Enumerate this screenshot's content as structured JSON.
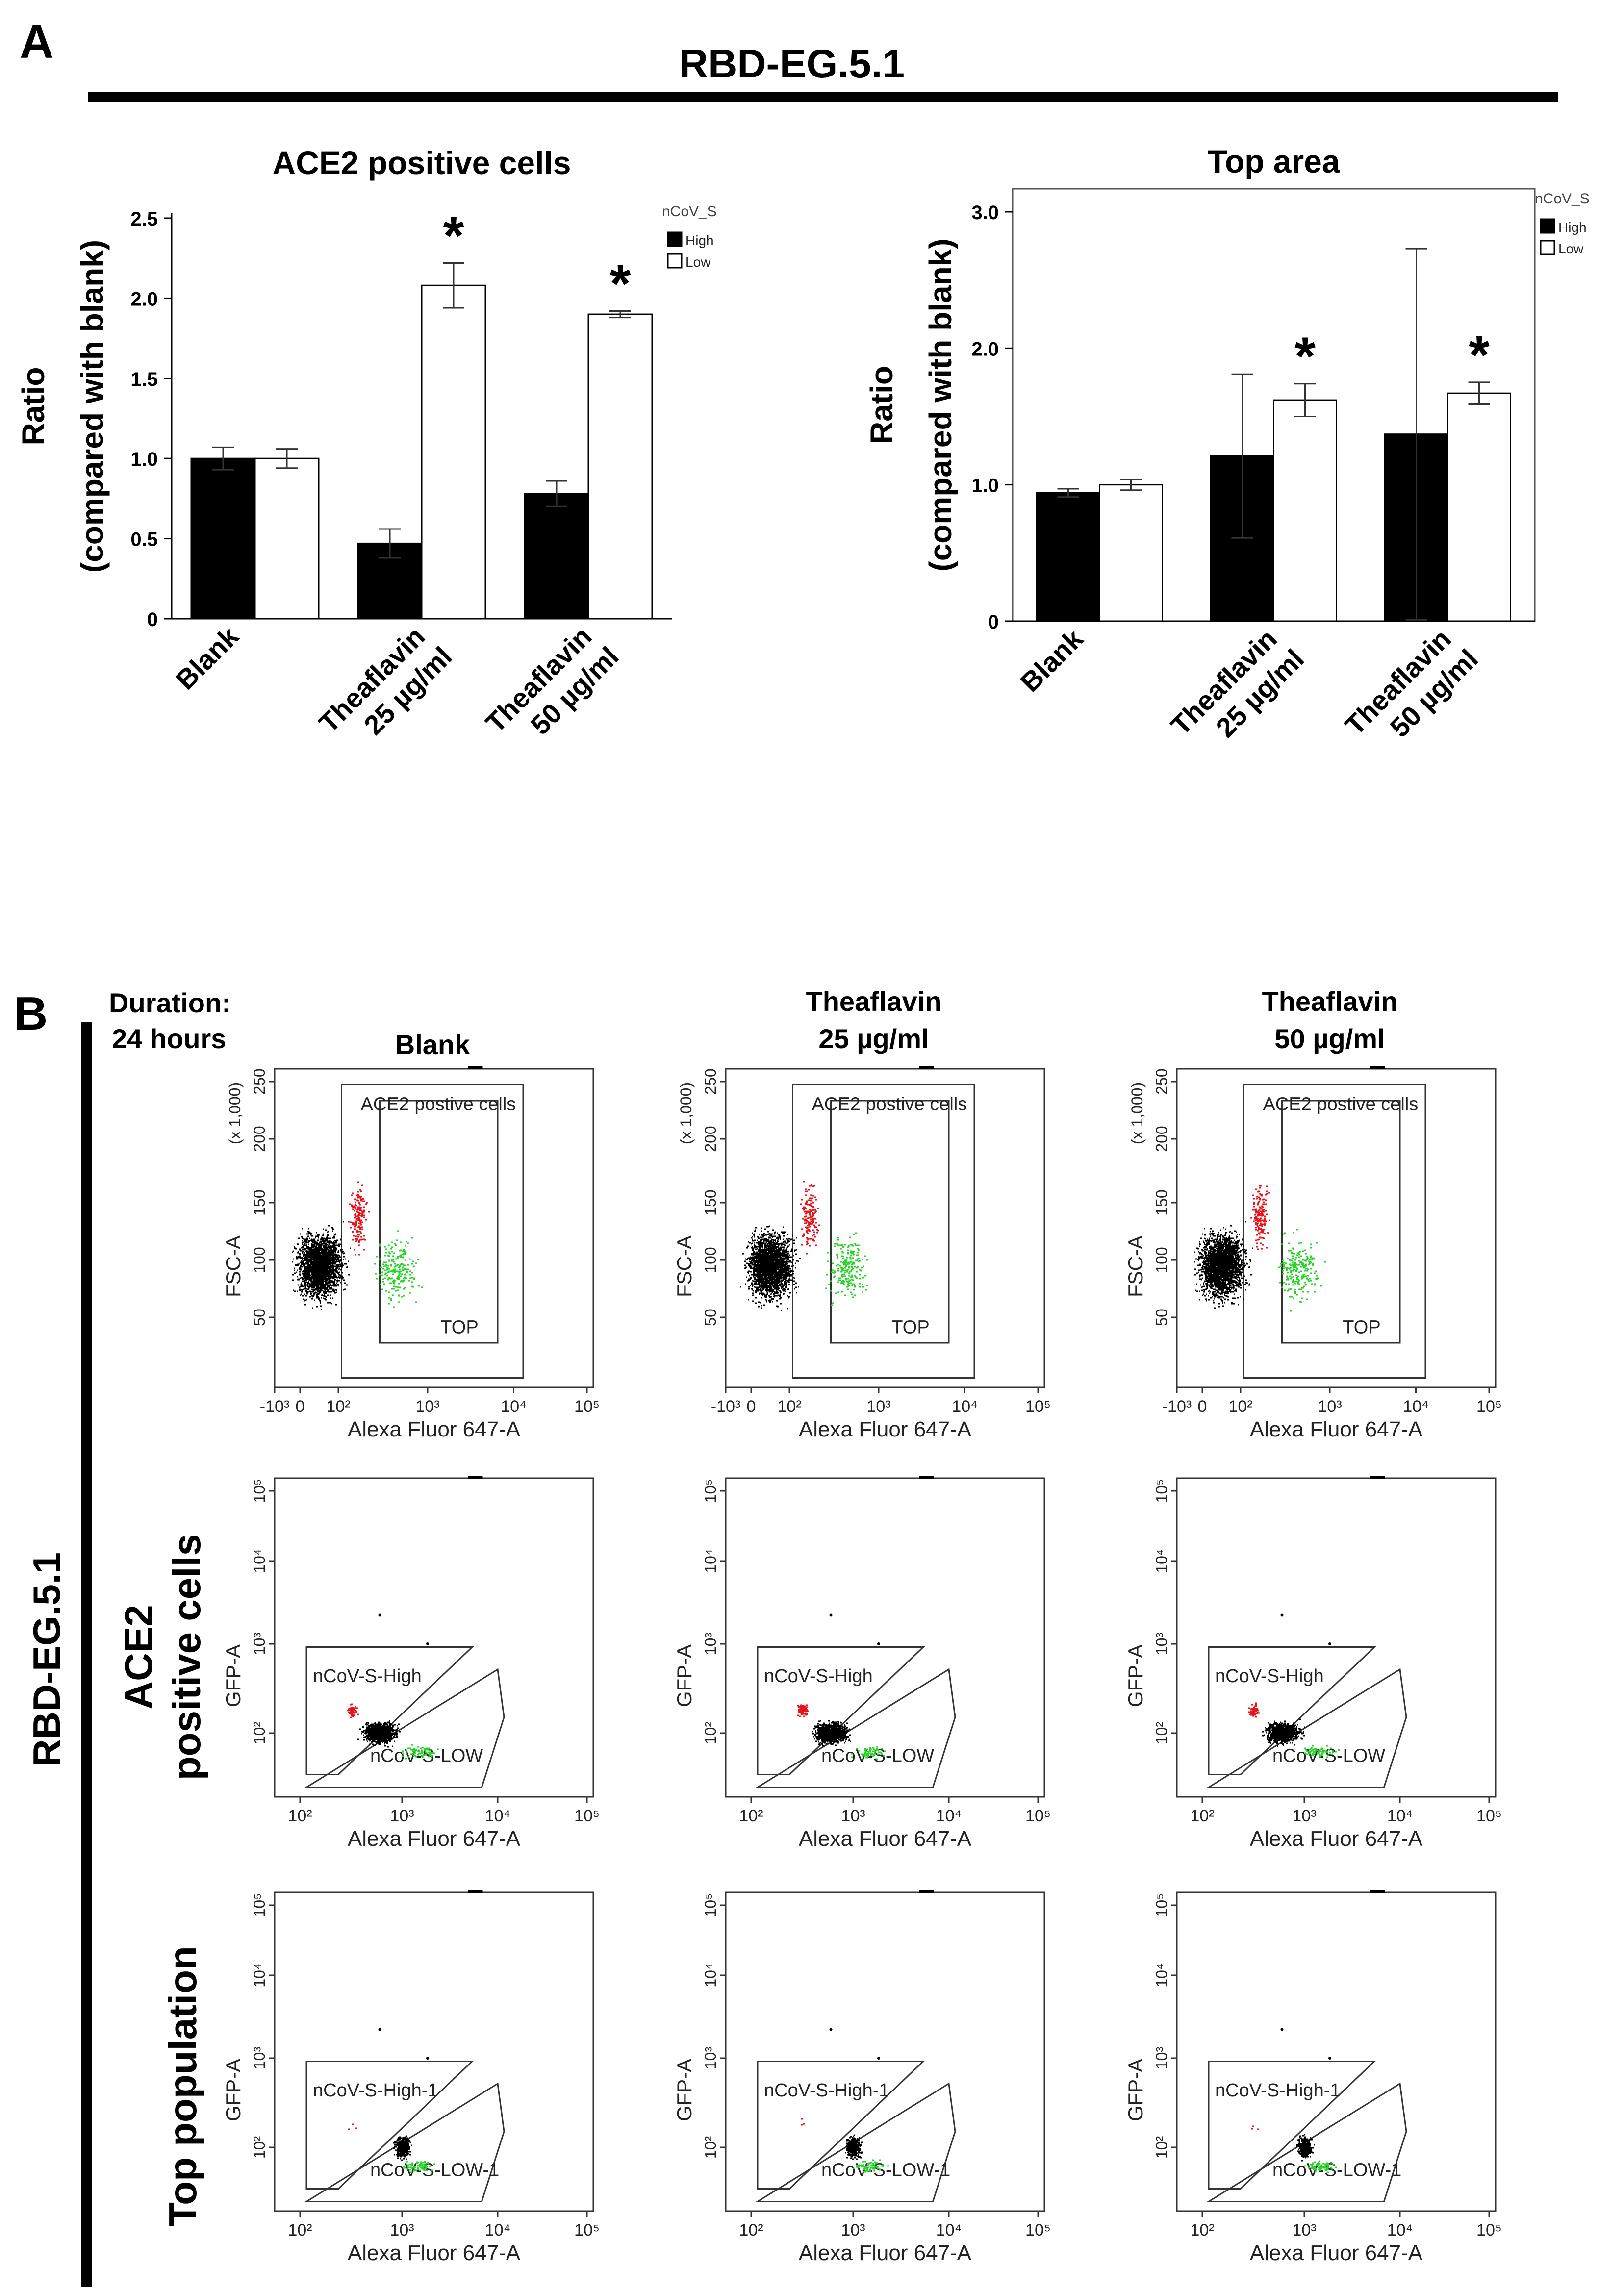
{
  "panel_a": {
    "letter": "A",
    "header": "RBD-EG.5.1"
  },
  "panel_b": {
    "letter": "B",
    "duration_line1": "Duration:",
    "duration_line2": "24 hours",
    "side_label": "RBD-EG.5.1",
    "columns": [
      {
        "line1": "Blank",
        "line2": ""
      },
      {
        "line1": "Theaflavin",
        "line2": "25 µg/ml"
      },
      {
        "line1": "Theaflavin",
        "line2": "50 µg/ml"
      }
    ],
    "row_labels": [
      {
        "line1": "",
        "line2": ""
      },
      {
        "line1": "ACE2",
        "line2": "positive cells"
      },
      {
        "line1": "Top population",
        "line2": ""
      }
    ],
    "flow_rows": [
      {
        "type": "scatter",
        "xlabel": "Alexa Fluor 647-A",
        "ylabel": "FSC-A",
        "ymult": "(x 1,000)",
        "xticks": [
          "-10³",
          "0",
          "10²",
          "10³",
          "10⁴",
          "10⁵"
        ],
        "yticks": [
          "50",
          "100",
          "150",
          "200",
          "250"
        ],
        "gates": [
          "ACE2 postive cells",
          "TOP"
        ]
      },
      {
        "type": "scatter",
        "xlabel": "Alexa Fluor 647-A",
        "ylabel": "GFP-A",
        "xticks": [
          "10²",
          "10³",
          "10⁴",
          "10⁵"
        ],
        "yticks": [
          "10²",
          "10³",
          "10⁴",
          "10⁵"
        ],
        "gates": [
          "nCoV-S-High",
          "nCoV-S-LOW"
        ]
      },
      {
        "type": "scatter",
        "xlabel": "Alexa Fluor 647-A",
        "ylabel": "GFP-A",
        "xticks": [
          "10²",
          "10³",
          "10⁴",
          "10⁵"
        ],
        "yticks": [
          "10²",
          "10³",
          "10⁴",
          "10⁵"
        ],
        "gates": [
          "nCoV-S-High-1",
          "nCoV-S-LOW-1"
        ]
      }
    ]
  },
  "colors": {
    "high_bar": "#000000",
    "low_bar": "#ffffff",
    "high_events": "#e8141b",
    "low_events": "#2bd42b",
    "events": "#000000"
  },
  "chart_data": [
    {
      "type": "bar",
      "title": "ACE2 positive cells",
      "ylabel": "Ratio\n(compared with blank)",
      "xlabel": "",
      "ylim": [
        0,
        2.5
      ],
      "yticks": [
        "0",
        "0.5",
        "1.0",
        "1.5",
        "2.0",
        "2.5"
      ],
      "categories": [
        "Blank",
        "Theaflavin\n25 µg/ml",
        "Theaflavin\n50 µg/ml"
      ],
      "legend_title": "nCoV_S",
      "legend_position": "top-right",
      "series": [
        {
          "name": "High",
          "values": [
            1.0,
            0.47,
            0.78
          ],
          "errors": [
            0.07,
            0.09,
            0.08
          ]
        },
        {
          "name": "Low",
          "values": [
            1.0,
            2.08,
            1.9
          ],
          "errors": [
            0.06,
            0.14,
            0.02
          ]
        }
      ],
      "significance": [
        {
          "category": 1,
          "series": "Low",
          "label": "*"
        },
        {
          "category": 2,
          "series": "Low",
          "label": "*"
        }
      ]
    },
    {
      "type": "bar",
      "title": "Top area",
      "ylabel": "Ratio\n(compared with blank)",
      "xlabel": "",
      "ylim": [
        0,
        3.0
      ],
      "yticks": [
        "0",
        "1.0",
        "2.0",
        "3.0"
      ],
      "categories": [
        "Blank",
        "Theaflavin\n25 µg/ml",
        "Theaflavin\n50 µg/ml"
      ],
      "legend_title": "nCoV_S",
      "legend_position": "top-right",
      "series": [
        {
          "name": "High",
          "values": [
            0.94,
            1.21,
            1.37
          ],
          "errors": [
            0.03,
            0.6,
            1.36
          ]
        },
        {
          "name": "Low",
          "values": [
            1.0,
            1.62,
            1.67
          ],
          "errors": [
            0.04,
            0.12,
            0.08
          ]
        }
      ],
      "significance": [
        {
          "category": 1,
          "series": "Low",
          "label": "*"
        },
        {
          "category": 2,
          "series": "Low",
          "label": "*"
        }
      ]
    }
  ]
}
